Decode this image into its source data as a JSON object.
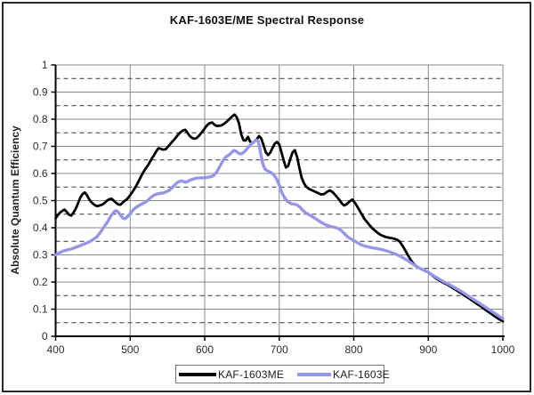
{
  "chart_data": {
    "type": "line",
    "title": "KAF-1603E/ME Spectral Response",
    "xlabel": "",
    "ylabel": "Absolute Quantum Efficiency",
    "xlim": [
      400,
      1000
    ],
    "ylim": [
      0,
      1
    ],
    "x_ticks": [
      400,
      500,
      600,
      700,
      800,
      900,
      1000
    ],
    "x_tick_labels": [
      "400",
      "500",
      "600",
      "700",
      "800",
      "900",
      "1000"
    ],
    "y_ticks": [
      0,
      0.1,
      0.2,
      0.3,
      0.4,
      0.5,
      0.6,
      0.7,
      0.8,
      0.9,
      1
    ],
    "y_tick_labels": [
      "0",
      "0.1",
      "0.2",
      "0.3",
      "0.4",
      "0.5",
      "0.6",
      "0.7",
      "0.8",
      "0.9",
      "1"
    ],
    "grid": {
      "major_solid_step": 0.1,
      "minor_dashed_step": 0.05,
      "vertical_step_nm": 100
    },
    "legend_position": "bottom",
    "colors": {
      "grid_solid": "#8a8a8a",
      "grid_dashed": "#333333",
      "axis": "#000000",
      "tick_text": "#2e2e2e",
      "frame_border": "#2a2a2a"
    },
    "series": [
      {
        "name": "KAF-1603ME",
        "color": "#000000",
        "stroke_width": 2.8,
        "points": [
          [
            400,
            0.435
          ],
          [
            403,
            0.447
          ],
          [
            406,
            0.456
          ],
          [
            409,
            0.462
          ],
          [
            412,
            0.467
          ],
          [
            415,
            0.458
          ],
          [
            418,
            0.448
          ],
          [
            421,
            0.445
          ],
          [
            424,
            0.456
          ],
          [
            427,
            0.47
          ],
          [
            430,
            0.49
          ],
          [
            433,
            0.51
          ],
          [
            436,
            0.524
          ],
          [
            439,
            0.53
          ],
          [
            442,
            0.52
          ],
          [
            445,
            0.505
          ],
          [
            448,
            0.494
          ],
          [
            451,
            0.487
          ],
          [
            454,
            0.481
          ],
          [
            457,
            0.48
          ],
          [
            460,
            0.483
          ],
          [
            463,
            0.486
          ],
          [
            466,
            0.492
          ],
          [
            469,
            0.5
          ],
          [
            472,
            0.505
          ],
          [
            475,
            0.507
          ],
          [
            478,
            0.5
          ],
          [
            481,
            0.492
          ],
          [
            484,
            0.486
          ],
          [
            487,
            0.485
          ],
          [
            490,
            0.493
          ],
          [
            493,
            0.5
          ],
          [
            496,
            0.506
          ],
          [
            500,
            0.52
          ],
          [
            504,
            0.536
          ],
          [
            508,
            0.553
          ],
          [
            512,
            0.575
          ],
          [
            516,
            0.597
          ],
          [
            520,
            0.615
          ],
          [
            524,
            0.63
          ],
          [
            528,
            0.65
          ],
          [
            532,
            0.668
          ],
          [
            535,
            0.682
          ],
          [
            538,
            0.693
          ],
          [
            541,
            0.691
          ],
          [
            544,
            0.688
          ],
          [
            548,
            0.69
          ],
          [
            552,
            0.703
          ],
          [
            556,
            0.716
          ],
          [
            560,
            0.728
          ],
          [
            564,
            0.742
          ],
          [
            568,
            0.753
          ],
          [
            571,
            0.759
          ],
          [
            574,
            0.761
          ],
          [
            577,
            0.75
          ],
          [
            580,
            0.738
          ],
          [
            583,
            0.731
          ],
          [
            586,
            0.728
          ],
          [
            589,
            0.73
          ],
          [
            592,
            0.738
          ],
          [
            595,
            0.748
          ],
          [
            598,
            0.758
          ],
          [
            601,
            0.77
          ],
          [
            604,
            0.78
          ],
          [
            607,
            0.786
          ],
          [
            610,
            0.788
          ],
          [
            613,
            0.78
          ],
          [
            616,
            0.775
          ],
          [
            619,
            0.776
          ],
          [
            622,
            0.777
          ],
          [
            625,
            0.781
          ],
          [
            628,
            0.787
          ],
          [
            631,
            0.795
          ],
          [
            634,
            0.803
          ],
          [
            637,
            0.811
          ],
          [
            640,
            0.817
          ],
          [
            643,
            0.807
          ],
          [
            646,
            0.785
          ],
          [
            649,
            0.745
          ],
          [
            652,
            0.722
          ],
          [
            655,
            0.722
          ],
          [
            658,
            0.735
          ],
          [
            661,
            0.717
          ],
          [
            664,
            0.711
          ],
          [
            667,
            0.718
          ],
          [
            670,
            0.727
          ],
          [
            673,
            0.738
          ],
          [
            676,
            0.729
          ],
          [
            679,
            0.703
          ],
          [
            682,
            0.678
          ],
          [
            685,
            0.668
          ],
          [
            688,
            0.677
          ],
          [
            691,
            0.694
          ],
          [
            694,
            0.71
          ],
          [
            697,
            0.716
          ],
          [
            700,
            0.707
          ],
          [
            703,
            0.678
          ],
          [
            706,
            0.648
          ],
          [
            709,
            0.622
          ],
          [
            712,
            0.628
          ],
          [
            715,
            0.655
          ],
          [
            718,
            0.678
          ],
          [
            721,
            0.686
          ],
          [
            724,
            0.66
          ],
          [
            727,
            0.62
          ],
          [
            730,
            0.585
          ],
          [
            733,
            0.565
          ],
          [
            736,
            0.552
          ],
          [
            740,
            0.543
          ],
          [
            744,
            0.538
          ],
          [
            748,
            0.533
          ],
          [
            752,
            0.528
          ],
          [
            756,
            0.523
          ],
          [
            760,
            0.524
          ],
          [
            764,
            0.532
          ],
          [
            768,
            0.538
          ],
          [
            772,
            0.53
          ],
          [
            776,
            0.518
          ],
          [
            780,
            0.505
          ],
          [
            784,
            0.49
          ],
          [
            787,
            0.482
          ],
          [
            790,
            0.486
          ],
          [
            794,
            0.496
          ],
          [
            798,
            0.504
          ],
          [
            802,
            0.49
          ],
          [
            806,
            0.472
          ],
          [
            810,
            0.453
          ],
          [
            814,
            0.434
          ],
          [
            818,
            0.42
          ],
          [
            822,
            0.407
          ],
          [
            826,
            0.395
          ],
          [
            830,
            0.386
          ],
          [
            834,
            0.377
          ],
          [
            838,
            0.371
          ],
          [
            842,
            0.367
          ],
          [
            846,
            0.364
          ],
          [
            850,
            0.362
          ],
          [
            854,
            0.36
          ],
          [
            858,
            0.356
          ],
          [
            862,
            0.348
          ],
          [
            866,
            0.331
          ],
          [
            870,
            0.312
          ],
          [
            874,
            0.292
          ],
          [
            878,
            0.275
          ],
          [
            882,
            0.263
          ],
          [
            886,
            0.255
          ],
          [
            890,
            0.249
          ],
          [
            895,
            0.242
          ],
          [
            900,
            0.236
          ],
          [
            905,
            0.225
          ],
          [
            910,
            0.214
          ],
          [
            915,
            0.206
          ],
          [
            920,
            0.198
          ],
          [
            925,
            0.191
          ],
          [
            930,
            0.183
          ],
          [
            935,
            0.174
          ],
          [
            940,
            0.166
          ],
          [
            945,
            0.157
          ],
          [
            950,
            0.148
          ],
          [
            955,
            0.139
          ],
          [
            960,
            0.13
          ],
          [
            965,
            0.12
          ],
          [
            970,
            0.111
          ],
          [
            975,
            0.101
          ],
          [
            980,
            0.091
          ],
          [
            985,
            0.082
          ],
          [
            990,
            0.072
          ],
          [
            995,
            0.063
          ],
          [
            1000,
            0.055
          ]
        ]
      },
      {
        "name": "KAF-1603E",
        "color": "#9596e8",
        "stroke_width": 3.4,
        "points": [
          [
            400,
            0.3
          ],
          [
            405,
            0.308
          ],
          [
            410,
            0.314
          ],
          [
            415,
            0.318
          ],
          [
            420,
            0.321
          ],
          [
            425,
            0.326
          ],
          [
            430,
            0.331
          ],
          [
            435,
            0.336
          ],
          [
            440,
            0.342
          ],
          [
            445,
            0.348
          ],
          [
            450,
            0.356
          ],
          [
            455,
            0.366
          ],
          [
            460,
            0.383
          ],
          [
            465,
            0.403
          ],
          [
            470,
            0.423
          ],
          [
            474,
            0.443
          ],
          [
            478,
            0.457
          ],
          [
            481,
            0.463
          ],
          [
            484,
            0.458
          ],
          [
            487,
            0.446
          ],
          [
            490,
            0.436
          ],
          [
            493,
            0.433
          ],
          [
            496,
            0.44
          ],
          [
            500,
            0.452
          ],
          [
            504,
            0.466
          ],
          [
            508,
            0.475
          ],
          [
            512,
            0.482
          ],
          [
            516,
            0.489
          ],
          [
            520,
            0.493
          ],
          [
            524,
            0.502
          ],
          [
            528,
            0.512
          ],
          [
            532,
            0.52
          ],
          [
            536,
            0.525
          ],
          [
            540,
            0.527
          ],
          [
            544,
            0.528
          ],
          [
            548,
            0.532
          ],
          [
            552,
            0.537
          ],
          [
            556,
            0.547
          ],
          [
            560,
            0.558
          ],
          [
            564,
            0.568
          ],
          [
            567,
            0.572
          ],
          [
            570,
            0.572
          ],
          [
            573,
            0.568
          ],
          [
            576,
            0.569
          ],
          [
            580,
            0.575
          ],
          [
            584,
            0.579
          ],
          [
            588,
            0.582
          ],
          [
            592,
            0.584
          ],
          [
            596,
            0.584
          ],
          [
            600,
            0.584
          ],
          [
            604,
            0.586
          ],
          [
            608,
            0.588
          ],
          [
            612,
            0.592
          ],
          [
            616,
            0.605
          ],
          [
            620,
            0.625
          ],
          [
            624,
            0.645
          ],
          [
            628,
            0.66
          ],
          [
            632,
            0.667
          ],
          [
            636,
            0.677
          ],
          [
            639,
            0.685
          ],
          [
            642,
            0.682
          ],
          [
            645,
            0.675
          ],
          [
            648,
            0.672
          ],
          [
            651,
            0.675
          ],
          [
            654,
            0.682
          ],
          [
            658,
            0.695
          ],
          [
            662,
            0.707
          ],
          [
            666,
            0.717
          ],
          [
            669,
            0.724
          ],
          [
            672,
            0.718
          ],
          [
            674,
            0.69
          ],
          [
            676,
            0.662
          ],
          [
            678,
            0.635
          ],
          [
            681,
            0.616
          ],
          [
            684,
            0.61
          ],
          [
            688,
            0.605
          ],
          [
            692,
            0.597
          ],
          [
            696,
            0.582
          ],
          [
            700,
            0.557
          ],
          [
            704,
            0.527
          ],
          [
            708,
            0.507
          ],
          [
            712,
            0.495
          ],
          [
            716,
            0.489
          ],
          [
            720,
            0.487
          ],
          [
            724,
            0.484
          ],
          [
            728,
            0.475
          ],
          [
            732,
            0.463
          ],
          [
            736,
            0.454
          ],
          [
            740,
            0.448
          ],
          [
            745,
            0.44
          ],
          [
            750,
            0.431
          ],
          [
            755,
            0.422
          ],
          [
            760,
            0.414
          ],
          [
            765,
            0.408
          ],
          [
            770,
            0.404
          ],
          [
            775,
            0.401
          ],
          [
            780,
            0.396
          ],
          [
            784,
            0.388
          ],
          [
            788,
            0.377
          ],
          [
            792,
            0.366
          ],
          [
            796,
            0.359
          ],
          [
            800,
            0.353
          ],
          [
            805,
            0.345
          ],
          [
            810,
            0.337
          ],
          [
            815,
            0.332
          ],
          [
            820,
            0.329
          ],
          [
            825,
            0.326
          ],
          [
            830,
            0.324
          ],
          [
            835,
            0.321
          ],
          [
            840,
            0.318
          ],
          [
            845,
            0.314
          ],
          [
            850,
            0.309
          ],
          [
            855,
            0.304
          ],
          [
            860,
            0.298
          ],
          [
            865,
            0.291
          ],
          [
            870,
            0.283
          ],
          [
            875,
            0.274
          ],
          [
            880,
            0.265
          ],
          [
            885,
            0.256
          ],
          [
            890,
            0.249
          ],
          [
            895,
            0.242
          ],
          [
            900,
            0.236
          ],
          [
            905,
            0.227
          ],
          [
            910,
            0.218
          ],
          [
            915,
            0.21
          ],
          [
            920,
            0.202
          ],
          [
            925,
            0.195
          ],
          [
            930,
            0.188
          ],
          [
            935,
            0.18
          ],
          [
            940,
            0.172
          ],
          [
            945,
            0.164
          ],
          [
            950,
            0.155
          ],
          [
            955,
            0.146
          ],
          [
            960,
            0.137
          ],
          [
            965,
            0.128
          ],
          [
            970,
            0.119
          ],
          [
            975,
            0.11
          ],
          [
            980,
            0.101
          ],
          [
            985,
            0.092
          ],
          [
            990,
            0.083
          ],
          [
            995,
            0.074
          ],
          [
            1000,
            0.065
          ]
        ]
      }
    ]
  }
}
